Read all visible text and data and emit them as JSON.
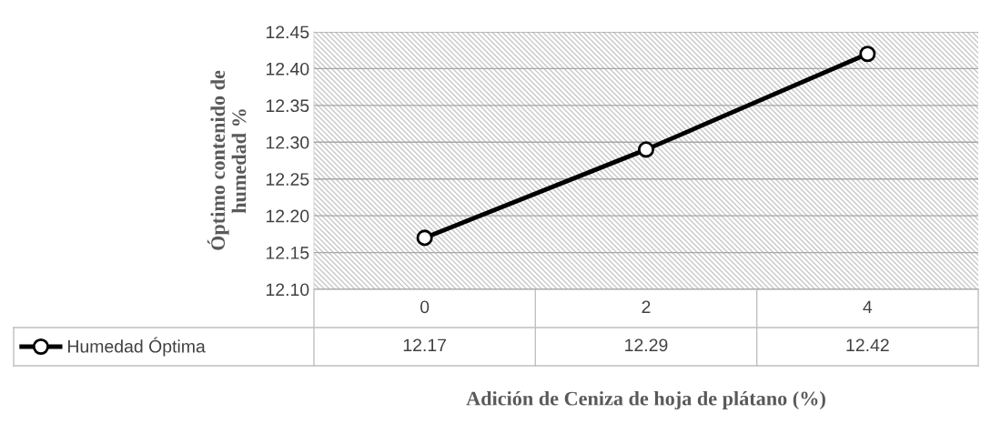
{
  "chart_data": {
    "type": "line",
    "xlabel": "Adición de Ceniza de hoja de plátano (%)",
    "ylabel": "Óptimo contenido de\nhumedad %",
    "categories": [
      "0",
      "2",
      "4"
    ],
    "series": [
      {
        "name": "Humedad Óptima",
        "color": "#000000",
        "values": [
          12.17,
          12.29,
          12.42
        ]
      }
    ],
    "ylim": [
      12.1,
      12.45
    ],
    "yticks": [
      {
        "value": 12.1,
        "label": "12.10"
      },
      {
        "value": 12.15,
        "label": "12.15"
      },
      {
        "value": 12.2,
        "label": "12.20"
      },
      {
        "value": 12.25,
        "label": "12.25"
      },
      {
        "value": 12.3,
        "label": "12.30"
      },
      {
        "value": 12.35,
        "label": "12.35"
      },
      {
        "value": 12.4,
        "label": "12.40"
      },
      {
        "value": 12.45,
        "label": "12.45"
      }
    ],
    "grid": "y",
    "marker": "circle",
    "line_style": "solid",
    "data_labels": true
  }
}
